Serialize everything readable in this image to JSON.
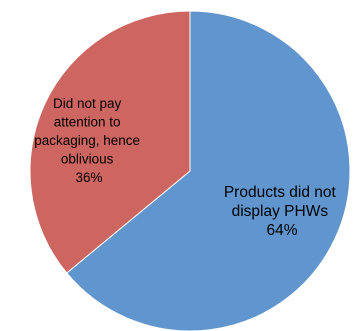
{
  "chart_data": {
    "type": "pie",
    "title": "",
    "slices": [
      {
        "label_lines": [
          "Products did not",
          "display PHWs"
        ],
        "percent_label": "64%",
        "value": 64,
        "color": "#6096CD"
      },
      {
        "label_lines": [
          "Did not pay",
          "attention to",
          "packaging, hence",
          "oblivious"
        ],
        "percent_label": "36%",
        "value": 36,
        "color": "#CD6560"
      }
    ],
    "legend": "none"
  }
}
